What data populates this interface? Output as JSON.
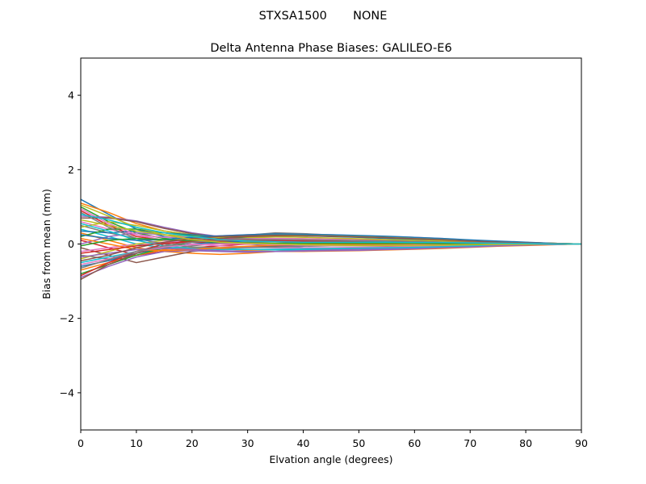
{
  "chart_data": {
    "type": "line",
    "suptitle": "STXSA1500       NONE",
    "title": "Delta Antenna Phase Biases: GALILEO-E6",
    "xlabel": "Elvation angle (degrees)",
    "ylabel": "Bias from mean (mm)",
    "xlim": [
      0,
      90
    ],
    "ylim": [
      -5,
      5
    ],
    "xticks": [
      0,
      10,
      20,
      30,
      40,
      50,
      60,
      70,
      80,
      90
    ],
    "yticks": [
      -4,
      -2,
      0,
      2,
      4
    ],
    "xtick_labels": [
      "0",
      "10",
      "20",
      "30",
      "40",
      "50",
      "60",
      "70",
      "80",
      "90"
    ],
    "ytick_labels": [
      "−4",
      "−2",
      "0",
      "2",
      "4"
    ],
    "grid": false,
    "x": [
      0,
      5,
      10,
      15,
      20,
      25,
      30,
      35,
      40,
      45,
      50,
      55,
      60,
      65,
      70,
      75,
      80,
      85,
      90
    ],
    "colors": [
      "#1f77b4",
      "#ff7f0e",
      "#2ca02c",
      "#d62728",
      "#9467bd",
      "#8c564b",
      "#e377c2",
      "#7f7f7f",
      "#bcbd22",
      "#17becf"
    ],
    "series": [
      {
        "values": [
          1.2,
          0.8,
          0.4,
          0.2,
          0.1,
          0.05,
          0.0,
          -0.05,
          -0.1,
          -0.12,
          -0.12,
          -0.1,
          -0.08,
          -0.06,
          -0.04,
          -0.02,
          -0.01,
          0.0,
          0.0
        ]
      },
      {
        "values": [
          1.1,
          0.85,
          0.55,
          0.35,
          0.25,
          0.2,
          0.15,
          0.12,
          0.1,
          0.08,
          0.06,
          0.05,
          0.04,
          0.03,
          0.02,
          0.01,
          0.0,
          0.0,
          0.0
        ]
      },
      {
        "values": [
          1.0,
          0.6,
          0.3,
          0.15,
          0.1,
          0.08,
          0.1,
          0.12,
          0.13,
          0.12,
          0.1,
          0.08,
          0.06,
          0.04,
          0.03,
          0.02,
          0.01,
          0.0,
          0.0
        ]
      },
      {
        "values": [
          0.9,
          0.5,
          0.2,
          0.1,
          0.05,
          0.02,
          0.0,
          -0.02,
          -0.04,
          -0.05,
          -0.05,
          -0.05,
          -0.04,
          -0.03,
          -0.02,
          -0.01,
          0.0,
          0.0,
          0.0
        ]
      },
      {
        "values": [
          0.75,
          0.72,
          0.62,
          0.45,
          0.3,
          0.2,
          0.15,
          0.12,
          0.1,
          0.09,
          0.08,
          0.06,
          0.05,
          0.04,
          0.03,
          0.02,
          0.01,
          0.0,
          0.0
        ]
      },
      {
        "values": [
          0.7,
          0.7,
          0.6,
          0.42,
          0.28,
          0.18,
          0.12,
          0.08,
          0.05,
          0.03,
          0.02,
          0.01,
          0.0,
          0.0,
          0.0,
          0.0,
          0.0,
          0.0,
          0.0
        ]
      },
      {
        "values": [
          0.6,
          0.4,
          0.25,
          0.18,
          0.2,
          0.22,
          0.25,
          0.28,
          0.27,
          0.25,
          0.22,
          0.2,
          0.18,
          0.15,
          0.1,
          0.07,
          0.04,
          0.02,
          0.0
        ]
      },
      {
        "values": [
          0.5,
          0.3,
          0.15,
          0.1,
          0.12,
          0.18,
          0.24,
          0.3,
          0.28,
          0.24,
          0.2,
          0.16,
          0.12,
          0.09,
          0.06,
          0.04,
          0.02,
          0.01,
          0.0
        ]
      },
      {
        "values": [
          0.45,
          0.6,
          0.5,
          0.35,
          0.25,
          0.2,
          0.18,
          0.16,
          0.14,
          0.12,
          0.1,
          0.08,
          0.06,
          0.05,
          0.04,
          0.02,
          0.01,
          0.0,
          0.0
        ]
      },
      {
        "values": [
          0.4,
          0.2,
          0.0,
          -0.1,
          -0.12,
          -0.1,
          -0.08,
          -0.06,
          -0.05,
          -0.04,
          -0.03,
          -0.02,
          -0.02,
          -0.01,
          -0.01,
          0.0,
          0.0,
          0.0,
          0.0
        ]
      },
      {
        "values": [
          0.35,
          0.3,
          0.35,
          0.3,
          0.25,
          0.2,
          0.2,
          0.22,
          0.22,
          0.2,
          0.18,
          0.15,
          0.12,
          0.1,
          0.07,
          0.05,
          0.03,
          0.01,
          0.0
        ]
      },
      {
        "values": [
          0.3,
          0.1,
          -0.1,
          -0.2,
          -0.25,
          -0.28,
          -0.25,
          -0.2,
          -0.16,
          -0.14,
          -0.12,
          -0.1,
          -0.09,
          -0.07,
          -0.05,
          -0.03,
          -0.02,
          -0.01,
          0.0
        ]
      },
      {
        "values": [
          0.2,
          0.4,
          0.4,
          0.3,
          0.22,
          0.18,
          0.15,
          0.12,
          0.1,
          0.08,
          0.07,
          0.06,
          0.05,
          0.04,
          0.03,
          0.02,
          0.01,
          0.0,
          0.0
        ]
      },
      {
        "values": [
          0.1,
          -0.1,
          -0.3,
          -0.2,
          -0.1,
          -0.05,
          0.0,
          0.02,
          0.04,
          0.05,
          0.05,
          0.04,
          0.03,
          0.02,
          0.01,
          0.01,
          0.0,
          0.0,
          0.0
        ]
      },
      {
        "values": [
          0.0,
          0.2,
          0.3,
          0.25,
          0.2,
          0.15,
          0.12,
          0.1,
          0.08,
          0.07,
          0.06,
          0.05,
          0.04,
          0.03,
          0.02,
          0.01,
          0.0,
          0.0,
          0.0
        ]
      },
      {
        "values": [
          -0.1,
          -0.3,
          -0.5,
          -0.35,
          -0.2,
          -0.12,
          -0.08,
          -0.05,
          -0.03,
          -0.02,
          -0.01,
          0.0,
          0.0,
          0.0,
          0.0,
          0.0,
          0.0,
          0.0,
          0.0
        ]
      },
      {
        "values": [
          -0.2,
          -0.1,
          0.0,
          0.05,
          0.1,
          0.12,
          0.14,
          0.15,
          0.14,
          0.13,
          0.12,
          0.1,
          0.08,
          0.06,
          0.04,
          0.03,
          0.02,
          0.01,
          0.0
        ]
      },
      {
        "values": [
          -0.3,
          -0.4,
          -0.3,
          -0.15,
          -0.05,
          0.02,
          0.05,
          0.06,
          0.06,
          0.05,
          0.04,
          0.03,
          0.02,
          0.01,
          0.0,
          0.0,
          0.0,
          0.0,
          0.0
        ]
      },
      {
        "values": [
          -0.4,
          -0.2,
          0.0,
          0.1,
          0.15,
          0.18,
          0.2,
          0.2,
          0.18,
          0.16,
          0.14,
          0.12,
          0.1,
          0.08,
          0.06,
          0.04,
          0.02,
          0.01,
          0.0
        ]
      },
      {
        "values": [
          -0.5,
          -0.35,
          -0.2,
          -0.12,
          -0.1,
          -0.12,
          -0.15,
          -0.16,
          -0.16,
          -0.15,
          -0.14,
          -0.13,
          -0.12,
          -0.1,
          -0.08,
          -0.05,
          -0.03,
          -0.01,
          0.0
        ]
      },
      {
        "values": [
          -0.6,
          -0.45,
          -0.25,
          -0.1,
          0.0,
          0.05,
          0.08,
          0.1,
          0.1,
          0.09,
          0.08,
          0.07,
          0.06,
          0.05,
          0.04,
          0.03,
          0.02,
          0.01,
          0.0
        ]
      },
      {
        "values": [
          -0.7,
          -0.5,
          -0.3,
          -0.15,
          -0.1,
          -0.12,
          -0.18,
          -0.2,
          -0.2,
          -0.19,
          -0.18,
          -0.16,
          -0.14,
          -0.12,
          -0.09,
          -0.06,
          -0.04,
          -0.02,
          0.0
        ]
      },
      {
        "values": [
          -0.8,
          -0.55,
          -0.3,
          -0.1,
          0.05,
          0.15,
          0.22,
          0.25,
          0.24,
          0.22,
          0.2,
          0.18,
          0.15,
          0.12,
          0.09,
          0.06,
          0.04,
          0.02,
          0.0
        ]
      },
      {
        "values": [
          -0.85,
          -0.5,
          -0.2,
          0.0,
          0.1,
          0.12,
          0.12,
          0.1,
          0.08,
          0.07,
          0.06,
          0.05,
          0.04,
          0.03,
          0.02,
          0.01,
          0.0,
          0.0,
          0.0
        ]
      },
      {
        "values": [
          -0.9,
          -0.6,
          -0.35,
          -0.2,
          -0.18,
          -0.2,
          -0.22,
          -0.2,
          -0.18,
          -0.16,
          -0.14,
          -0.12,
          -0.1,
          -0.08,
          -0.06,
          -0.04,
          -0.02,
          -0.01,
          0.0
        ]
      },
      {
        "values": [
          -0.95,
          -0.55,
          -0.25,
          -0.05,
          0.08,
          0.15,
          0.2,
          0.22,
          0.22,
          0.21,
          0.2,
          0.18,
          0.15,
          0.12,
          0.09,
          0.06,
          0.04,
          0.02,
          0.0
        ]
      },
      {
        "values": [
          0.95,
          0.55,
          0.25,
          0.1,
          0.0,
          -0.05,
          -0.08,
          -0.1,
          -0.1,
          -0.1,
          -0.09,
          -0.08,
          -0.07,
          -0.06,
          -0.04,
          -0.03,
          -0.02,
          -0.01,
          0.0
        ]
      },
      {
        "values": [
          0.85,
          0.45,
          0.15,
          0.0,
          -0.08,
          -0.1,
          -0.1,
          -0.08,
          -0.06,
          -0.05,
          -0.05,
          -0.04,
          -0.04,
          -0.03,
          -0.02,
          -0.01,
          -0.01,
          0.0,
          0.0
        ]
      },
      {
        "values": [
          0.65,
          0.5,
          0.35,
          0.25,
          0.2,
          0.2,
          0.22,
          0.25,
          0.25,
          0.24,
          0.22,
          0.2,
          0.17,
          0.14,
          0.1,
          0.07,
          0.04,
          0.02,
          0.0
        ]
      },
      {
        "values": [
          0.55,
          0.35,
          0.1,
          -0.05,
          -0.12,
          -0.15,
          -0.15,
          -0.14,
          -0.13,
          -0.12,
          -0.11,
          -0.1,
          -0.09,
          -0.07,
          -0.05,
          -0.03,
          -0.02,
          -0.01,
          0.0
        ]
      },
      {
        "values": [
          0.25,
          0.15,
          0.1,
          0.12,
          0.18,
          0.22,
          0.25,
          0.27,
          0.26,
          0.25,
          0.23,
          0.21,
          0.18,
          0.15,
          0.11,
          0.08,
          0.05,
          0.02,
          0.0
        ]
      },
      {
        "values": [
          0.15,
          0.0,
          -0.15,
          -0.18,
          -0.15,
          -0.1,
          -0.06,
          -0.03,
          -0.01,
          0.0,
          0.0,
          0.0,
          0.0,
          0.0,
          0.0,
          0.0,
          0.0,
          0.0,
          0.0
        ]
      },
      {
        "values": [
          -0.05,
          0.1,
          0.15,
          0.12,
          0.08,
          0.05,
          0.03,
          0.02,
          0.02,
          0.02,
          0.02,
          0.02,
          0.02,
          0.01,
          0.01,
          0.01,
          0.0,
          0.0,
          0.0
        ]
      },
      {
        "values": [
          -0.25,
          -0.15,
          -0.05,
          0.02,
          0.06,
          0.08,
          0.1,
          0.11,
          0.11,
          0.1,
          0.09,
          0.08,
          0.07,
          0.05,
          0.04,
          0.03,
          0.02,
          0.01,
          0.0
        ]
      },
      {
        "values": [
          -0.35,
          -0.25,
          -0.15,
          -0.12,
          -0.14,
          -0.18,
          -0.2,
          -0.2,
          -0.19,
          -0.18,
          -0.17,
          -0.15,
          -0.13,
          -0.1,
          -0.08,
          -0.05,
          -0.03,
          -0.01,
          0.0
        ]
      },
      {
        "values": [
          -0.45,
          -0.3,
          -0.1,
          0.05,
          0.15,
          0.2,
          0.22,
          0.23,
          0.22,
          0.21,
          0.19,
          0.17,
          0.14,
          0.11,
          0.08,
          0.05,
          0.03,
          0.01,
          0.0
        ]
      },
      {
        "values": [
          -0.55,
          -0.4,
          -0.2,
          -0.08,
          -0.02,
          0.0,
          0.0,
          -0.02,
          -0.03,
          -0.04,
          -0.04,
          -0.04,
          -0.03,
          -0.03,
          -0.02,
          -0.01,
          -0.01,
          0.0,
          0.0
        ]
      },
      {
        "values": [
          -0.65,
          -0.42,
          -0.2,
          -0.05,
          0.05,
          0.1,
          0.12,
          0.12,
          0.11,
          0.1,
          0.09,
          0.08,
          0.07,
          0.05,
          0.04,
          0.03,
          0.02,
          0.01,
          0.0
        ]
      },
      {
        "values": [
          1.05,
          0.75,
          0.45,
          0.25,
          0.12,
          0.05,
          0.02,
          0.0,
          -0.02,
          -0.03,
          -0.04,
          -0.04,
          -0.04,
          -0.03,
          -0.02,
          -0.01,
          -0.01,
          0.0,
          0.0
        ]
      },
      {
        "values": [
          0.8,
          0.65,
          0.45,
          0.3,
          0.2,
          0.12,
          0.08,
          0.06,
          0.05,
          0.05,
          0.05,
          0.05,
          0.04,
          0.04,
          0.03,
          0.02,
          0.01,
          0.0,
          0.0
        ]
      }
    ]
  }
}
